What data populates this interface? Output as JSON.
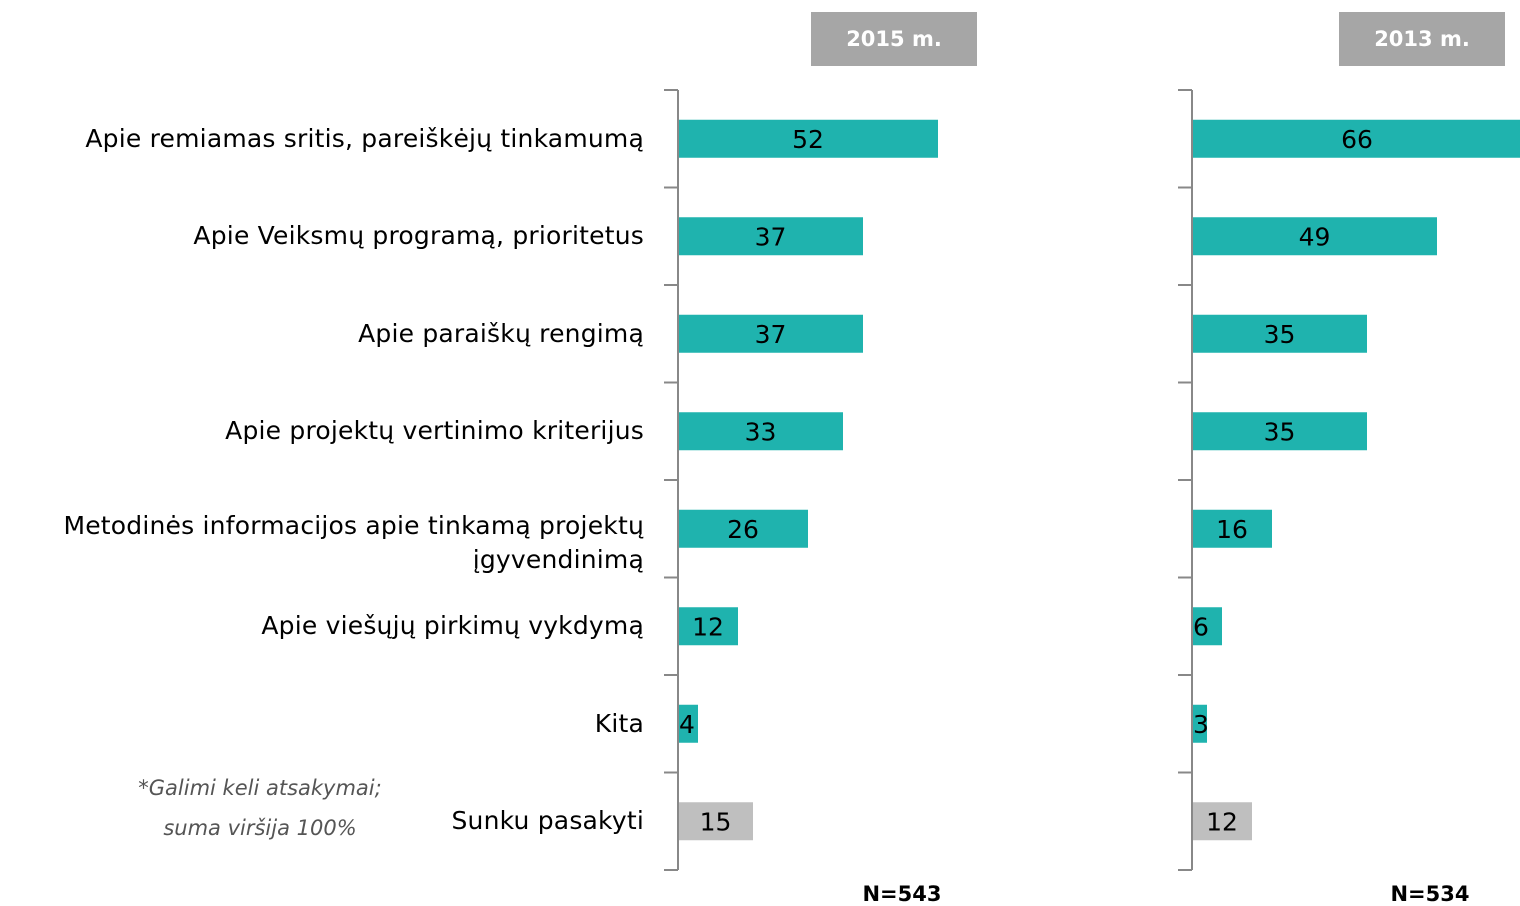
{
  "chart_data": [
    {
      "type": "bar",
      "title": "2015 m.",
      "subtitle": "N=543",
      "categories": [
        "Apie remiamas sritis, pareiškėjų tinkamumą",
        "Apie Veiksmų programą, prioritetus",
        "Apie paraiškų rengimą",
        "Apie projektų vertinimo kriterijus",
        "Metodinės informacijos apie tinkamą projektų įgyvendinimą",
        "Apie viešųjų pirkimų vykdymą",
        "Kita",
        "Sunku pasakyti"
      ],
      "values": [
        52,
        37,
        37,
        33,
        26,
        12,
        4,
        15
      ],
      "colors": [
        "#1fb3ae",
        "#1fb3ae",
        "#1fb3ae",
        "#1fb3ae",
        "#1fb3ae",
        "#1fb3ae",
        "#1fb3ae",
        "#bfbfbf"
      ],
      "xlim": [
        0,
        66
      ]
    },
    {
      "type": "bar",
      "title": "2013 m.",
      "subtitle": "N=534",
      "values": [
        66,
        49,
        35,
        35,
        16,
        6,
        3,
        12
      ],
      "colors": [
        "#1fb3ae",
        "#1fb3ae",
        "#1fb3ae",
        "#1fb3ae",
        "#1fb3ae",
        "#1fb3ae",
        "#1fb3ae",
        "#bfbfbf"
      ],
      "xlim": [
        0,
        66
      ]
    }
  ],
  "annotations": [
    "*Galimi keli atsakymai;",
    "suma viršija 100%"
  ]
}
